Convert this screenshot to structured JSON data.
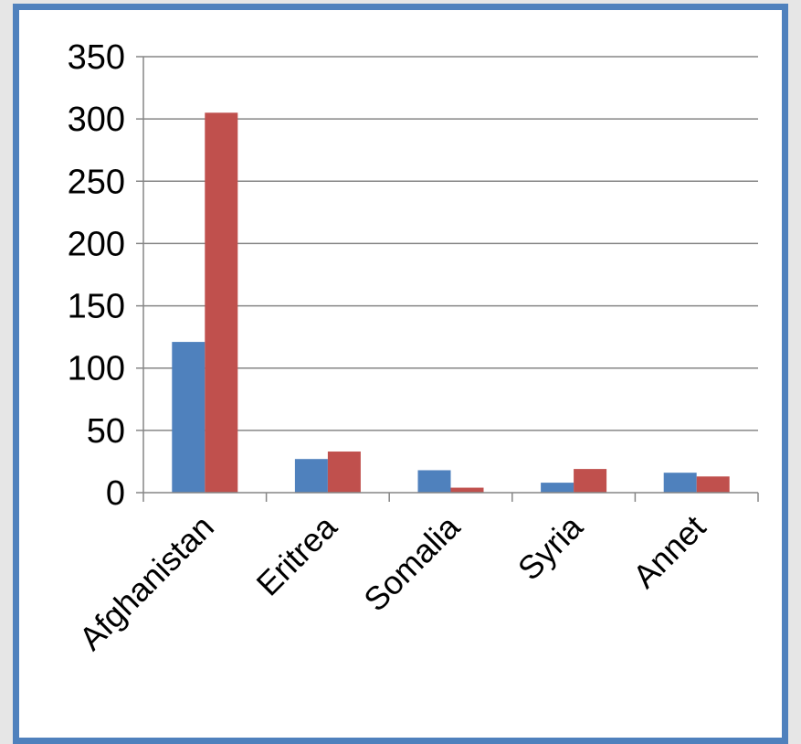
{
  "chart_data": {
    "type": "bar",
    "title": "",
    "xlabel": "",
    "ylabel": "",
    "categories": [
      "Afghanistan",
      "Eritrea",
      "Somalia",
      "Syria",
      "Annet"
    ],
    "series": [
      {
        "values": [
          121,
          27,
          18,
          8,
          16
        ],
        "color": "#4f81bd"
      },
      {
        "values": [
          305,
          33,
          4,
          19,
          13
        ],
        "color": "#c0504d"
      }
    ],
    "ylim": [
      0,
      350
    ],
    "yticks": [
      "0",
      "50",
      "100",
      "150",
      "200",
      "250",
      "300",
      "350"
    ],
    "grid": true,
    "legend": "none"
  },
  "colors": {
    "frame_border": "#4f81bd",
    "background": "#ffffff",
    "page_background": "#e6e6e6"
  }
}
